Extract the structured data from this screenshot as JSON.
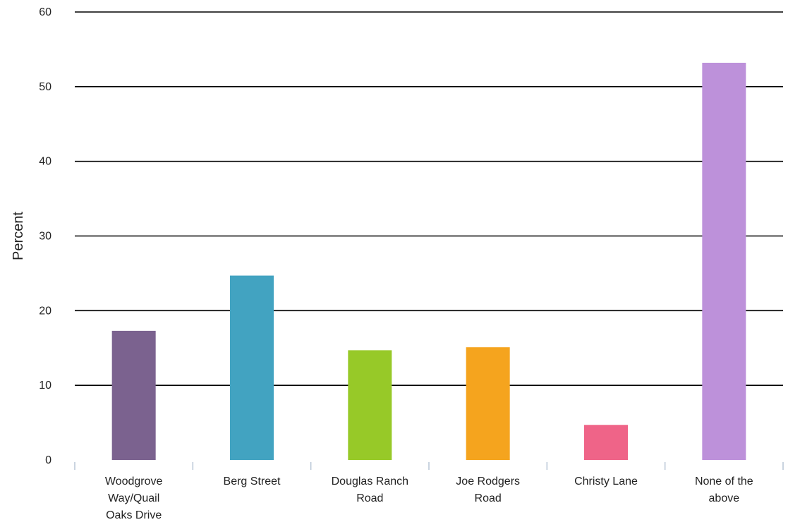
{
  "chart_data": {
    "type": "bar",
    "title": "",
    "xlabel": "",
    "ylabel": "Percent",
    "ylim": [
      0,
      60
    ],
    "yticks": [
      0,
      10,
      20,
      30,
      40,
      50,
      60
    ],
    "grid": true,
    "legend": "none",
    "categories": [
      "Woodgrove Way/Quail Oaks Drive",
      "Berg Street",
      "Douglas Ranch Road",
      "Joe Rodgers Road",
      "Christy Lane",
      "None of the above"
    ],
    "category_lines": [
      [
        "Woodgrove",
        "Way/Quail",
        "Oaks Drive"
      ],
      [
        "Berg Street"
      ],
      [
        "Douglas Ranch",
        "Road"
      ],
      [
        "Joe Rodgers",
        "Road"
      ],
      [
        "Christy Lane"
      ],
      [
        "None of the",
        "above"
      ]
    ],
    "values": [
      17.3,
      24.7,
      14.7,
      15.1,
      4.7,
      53.2
    ],
    "colors": [
      "#7b628f",
      "#42a3c1",
      "#97c928",
      "#f5a41e",
      "#ef6488",
      "#bd91da"
    ]
  }
}
